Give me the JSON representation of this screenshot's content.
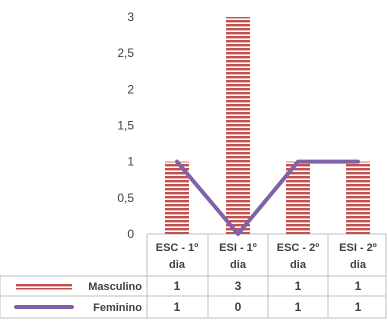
{
  "chart_data": {
    "type": "bar",
    "categories": [
      [
        "ESC - 1º",
        "dia"
      ],
      [
        "ESI - 1º",
        "dia"
      ],
      [
        "ESC - 2º",
        "dia"
      ],
      [
        "ESI - 2º",
        "dia"
      ]
    ],
    "ylim": [
      0,
      3
    ],
    "yticks": [
      "0",
      "0,5",
      "1",
      "1,5",
      "2",
      "2,5",
      "3"
    ],
    "grid": false,
    "legend_placement": "data-table-left",
    "series": [
      {
        "name": "Masculino",
        "type": "bar",
        "values": [
          1,
          3,
          1,
          1
        ],
        "color": "#c0504d"
      },
      {
        "name": "Feminino",
        "type": "line",
        "values": [
          1,
          0,
          1,
          1
        ],
        "color": "#7f62a8"
      }
    ],
    "table_values": [
      [
        "1",
        "3",
        "1",
        "1"
      ],
      [
        "1",
        "0",
        "1",
        "1"
      ]
    ]
  }
}
